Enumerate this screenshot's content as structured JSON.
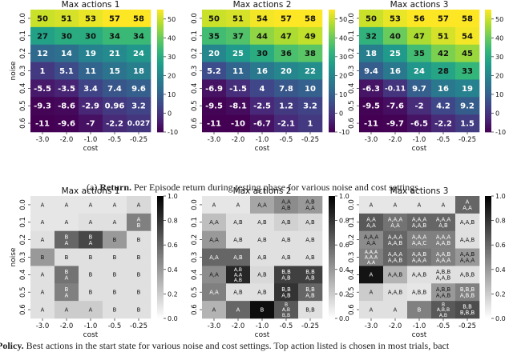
{
  "captions": {
    "a_label": "(a)",
    "a_bold": "Return.",
    "a_text": "Per Episode return during testing phase for various noise and cost settings.",
    "b_bold": "Policy.",
    "b_text": "Best actions in the start state for various noise and cost settings. Top action listed is chosen in most trials, bact"
  },
  "chart_data": [
    {
      "type": "heatmap",
      "title": "Max actions 1",
      "xlabel": "cost",
      "ylabel": "noise",
      "x_categories": [
        "-3.0",
        "-2.0",
        "-1.0",
        "-0.5",
        "-0.25"
      ],
      "y_categories": [
        "0.0",
        "0.1",
        "0.2",
        "0.3",
        "0.4",
        "0.5",
        "0.6"
      ],
      "values": [
        [
          50,
          51,
          53,
          57,
          58
        ],
        [
          27,
          30,
          30,
          34,
          34
        ],
        [
          12,
          14,
          19,
          21,
          24
        ],
        [
          1,
          5.1,
          11,
          15,
          18
        ],
        [
          -5.5,
          -3.5,
          3.4,
          7.4,
          9.6
        ],
        [
          -9.3,
          -8.6,
          -2.9,
          0.96,
          3.2
        ],
        [
          -11,
          -9.6,
          -7,
          -2.2,
          0.027
        ]
      ],
      "labels": [
        [
          "50",
          "51",
          "53",
          "57",
          "58"
        ],
        [
          "27",
          "30",
          "30",
          "34",
          "34"
        ],
        [
          "12",
          "14",
          "19",
          "21",
          "24"
        ],
        [
          "1",
          "5.1",
          "11",
          "15",
          "18"
        ],
        [
          "-5.5",
          "-3.5",
          "3.4",
          "7.4",
          "9.6"
        ],
        [
          "-9.3",
          "-8.6",
          "-2.9",
          "0.96",
          "3.2"
        ],
        [
          "-11",
          "-9.6",
          "-7",
          "-2.2",
          "0.027"
        ]
      ],
      "colorbar": {
        "colormap": "viridis",
        "min": -10,
        "max": 55,
        "ticks": [
          -10,
          0,
          10,
          20,
          30,
          40,
          50
        ]
      }
    },
    {
      "type": "heatmap",
      "title": "Max actions 2",
      "xlabel": "cost",
      "ylabel": "",
      "x_categories": [
        "-3.0",
        "-2.0",
        "-1.0",
        "-0.5",
        "-0.25"
      ],
      "y_categories": [
        "0.0",
        "0.1",
        "0.2",
        "0.3",
        "0.4",
        "0.5",
        "0.6"
      ],
      "values": [
        [
          50,
          51,
          54,
          57,
          58
        ],
        [
          35,
          37,
          44,
          47,
          49
        ],
        [
          20,
          25,
          30,
          36,
          38
        ],
        [
          5.2,
          11,
          16,
          20,
          22
        ],
        [
          -6.9,
          -1.5,
          4,
          7.8,
          10
        ],
        [
          -9.5,
          -8.1,
          -2.5,
          1.2,
          3.2
        ],
        [
          -11,
          -10,
          -6.7,
          -2.1,
          1
        ]
      ],
      "labels": [
        [
          "50",
          "51",
          "54",
          "57",
          "58"
        ],
        [
          "35",
          "37",
          "44",
          "47",
          "49"
        ],
        [
          "20",
          "25",
          "30",
          "36",
          "38"
        ],
        [
          "5.2",
          "11",
          "16",
          "20",
          "22"
        ],
        [
          "-6.9",
          "-1.5",
          "4",
          "7.8",
          "10"
        ],
        [
          "-9.5",
          "-8.1",
          "-2.5",
          "1.2",
          "3.2"
        ],
        [
          "-11",
          "-10",
          "-6.7",
          "-2.1",
          "1"
        ]
      ],
      "colorbar": {
        "colormap": "viridis",
        "min": -10,
        "max": 55,
        "ticks": [
          -10,
          0,
          10,
          20,
          30,
          40,
          50
        ]
      }
    },
    {
      "type": "heatmap",
      "title": "Max actions 3",
      "xlabel": "cost",
      "ylabel": "",
      "x_categories": [
        "-3.0",
        "-2.0",
        "-1.0",
        "-0.5",
        "-0.25"
      ],
      "y_categories": [
        "0.0",
        "0.1",
        "0.2",
        "0.3",
        "0.4",
        "0.5",
        "0.6"
      ],
      "values": [
        [
          50,
          53,
          56,
          57,
          58
        ],
        [
          32,
          40,
          47,
          51,
          54
        ],
        [
          18,
          25,
          35,
          42,
          45
        ],
        [
          9.4,
          16,
          24,
          28,
          33
        ],
        [
          -6.3,
          -0.11,
          9.7,
          16,
          19
        ],
        [
          -9.5,
          -7.6,
          -2,
          4.2,
          9.2
        ],
        [
          -11,
          -9.7,
          -6.5,
          -2.2,
          1.5
        ]
      ],
      "labels": [
        [
          "50",
          "53",
          "56",
          "57",
          "58"
        ],
        [
          "32",
          "40",
          "47",
          "51",
          "54"
        ],
        [
          "18",
          "25",
          "35",
          "42",
          "45"
        ],
        [
          "9.4",
          "16",
          "24",
          "28",
          "33"
        ],
        [
          "-6.3",
          "-0.11",
          "9.7",
          "16",
          "19"
        ],
        [
          "-9.5",
          "-7.6",
          "-2",
          "4.2",
          "9.2"
        ],
        [
          "-11",
          "-9.7",
          "-6.5",
          "-2.2",
          "1.5"
        ]
      ],
      "colorbar": {
        "colormap": "viridis",
        "min": -10,
        "max": 55,
        "ticks": [
          -10,
          0,
          10,
          20,
          30,
          40,
          50
        ]
      }
    },
    {
      "type": "heatmap",
      "title": "Max actions 1",
      "xlabel": "cost",
      "ylabel": "noise",
      "x_categories": [
        "-3.0",
        "-2.0",
        "-1.0",
        "-0.5",
        "-0.25"
      ],
      "y_categories": [
        "0.0",
        "0.1",
        "0.2",
        "0.3",
        "0.4",
        "0.5",
        "0.6"
      ],
      "values": [
        [
          0.1,
          0.1,
          0.1,
          0.1,
          0.15
        ],
        [
          0.1,
          0.1,
          0.12,
          0.12,
          0.5
        ],
        [
          0.12,
          0.6,
          0.72,
          0.4,
          0.12
        ],
        [
          0.4,
          0.12,
          0.12,
          0.12,
          0.12
        ],
        [
          0.12,
          0.55,
          0.12,
          0.12,
          0.12
        ],
        [
          0.12,
          0.5,
          0.12,
          0.12,
          0.12
        ],
        [
          0.12,
          0.2,
          0.2,
          0.12,
          0.12
        ]
      ],
      "labels": [
        [
          "A",
          "A",
          "A",
          "A",
          "A"
        ],
        [
          "A",
          "A",
          "A",
          "A",
          "A\nB"
        ],
        [
          "A",
          "B\nA",
          "B\nA",
          "B",
          "B"
        ],
        [
          "B",
          "B",
          "B",
          "B",
          "B"
        ],
        [
          "A",
          "B\nA",
          "B",
          "B",
          "B"
        ],
        [
          "A",
          "B\nA",
          "B",
          "B",
          "B"
        ],
        [
          "A",
          "A",
          "A",
          "B",
          "B"
        ]
      ],
      "colorbar": {
        "colormap": "gray",
        "min": 0,
        "max": 1,
        "ticks": [
          0.0,
          0.2,
          0.4,
          0.6,
          0.8,
          1.0
        ]
      }
    },
    {
      "type": "heatmap",
      "title": "Max actions 2",
      "xlabel": "cost",
      "ylabel": "",
      "x_categories": [
        "-3.0",
        "-2.0",
        "-1.0",
        "-0.5",
        "-0.25"
      ],
      "y_categories": [
        "0.0",
        "0.1",
        "0.2",
        "0.3",
        "0.4",
        "0.5",
        "0.6"
      ],
      "values": [
        [
          0.1,
          0.1,
          0.35,
          0.45,
          0.4
        ],
        [
          0.25,
          0.12,
          0.12,
          0.18,
          0.15
        ],
        [
          0.4,
          0.12,
          0.12,
          0.12,
          0.12
        ],
        [
          0.6,
          0.6,
          0.12,
          0.12,
          0.12
        ],
        [
          0.45,
          0.85,
          0.15,
          0.75,
          0.75
        ],
        [
          0.5,
          0.12,
          0.12,
          0.8,
          0.6
        ],
        [
          0.3,
          0.6,
          0.95,
          0.65,
          0.12
        ]
      ],
      "labels": [
        [
          "A",
          "A",
          "A,A",
          "A,A\nA,B",
          "A,B\nA,A"
        ],
        [
          "A,A",
          "A,B",
          "A,B",
          "A,B",
          "A,B"
        ],
        [
          "A,A",
          "A,B",
          "A,B",
          "A,B",
          "A,B"
        ],
        [
          "A,A",
          "A,B",
          "A,B",
          "A,B",
          "A,B"
        ],
        [
          "A,A",
          "A,B\nA,A\nA,B",
          "A,B",
          "B,B\nA,B",
          "B,B\nA,B"
        ],
        [
          "A,A",
          "A,B",
          "A,B",
          "B,B\nA,B",
          "B,B\nA,B"
        ],
        [
          "A",
          "A",
          "B",
          "B\nA,B\nB,B",
          "B,B"
        ]
      ],
      "colorbar": {
        "colormap": "gray",
        "min": 0,
        "max": 1,
        "ticks": [
          0.0,
          0.2,
          0.4,
          0.6,
          0.8,
          1.0
        ]
      }
    },
    {
      "type": "heatmap",
      "title": "Max actions 3",
      "xlabel": "cost",
      "ylabel": "",
      "x_categories": [
        "-3.0",
        "-2.0",
        "-1.0",
        "-0.5",
        "-0.25"
      ],
      "y_categories": [
        "0.0",
        "0.1",
        "0.2",
        "0.3",
        "0.4",
        "0.5",
        "0.6"
      ],
      "values": [
        [
          0.1,
          0.1,
          0.1,
          0.1,
          0.6
        ],
        [
          0.65,
          0.55,
          0.6,
          0.6,
          0.12
        ],
        [
          0.45,
          0.6,
          0.5,
          0.5,
          0.12
        ],
        [
          0.5,
          0.6,
          0.55,
          0.5,
          0.4
        ],
        [
          0.92,
          0.3,
          0.12,
          0.12,
          0.12
        ],
        [
          0.2,
          0.12,
          0.1,
          0.4,
          0.5
        ],
        [
          0.12,
          0.12,
          0.5,
          0.65,
          0.7
        ]
      ],
      "labels": [
        [
          "A",
          "A",
          "A",
          "A",
          "A\nA,A"
        ],
        [
          "A,A\nA,A",
          "A,A,A\nA,A",
          "A,A,A\nA,A,B",
          "A,A,A\nA,B",
          "A,A,B"
        ],
        [
          "A,A,A\nA,A",
          "A,A,A\nA,A,B",
          "A,A,A\nA,A,C",
          "A,A,A\nA,A,B",
          "A,A,B"
        ],
        [
          "A,A,A\nA,A,A\nA,A",
          "A,A,A\nA,A,B",
          "A,A,B\nA,A,A",
          "A,A,B\nA,A,A",
          "A,A,B\nA,A,A"
        ],
        [
          "A",
          "A,A,B",
          "A,A,B",
          "A,B,B\nA,A,B",
          "A,B,B"
        ],
        [
          "A",
          "A,A,B",
          "A,B,B",
          "A,B,B\nA,A,B",
          "B,B,B\nA,B,B"
        ],
        [
          "A",
          "A",
          "B",
          "B\nA,B,B\nA,B",
          "B,B\nB,B,B"
        ]
      ],
      "colorbar": {
        "colormap": "gray",
        "min": 0,
        "max": 1,
        "ticks": [
          0.0,
          0.2,
          0.4,
          0.6,
          0.8,
          1.0
        ]
      }
    }
  ]
}
